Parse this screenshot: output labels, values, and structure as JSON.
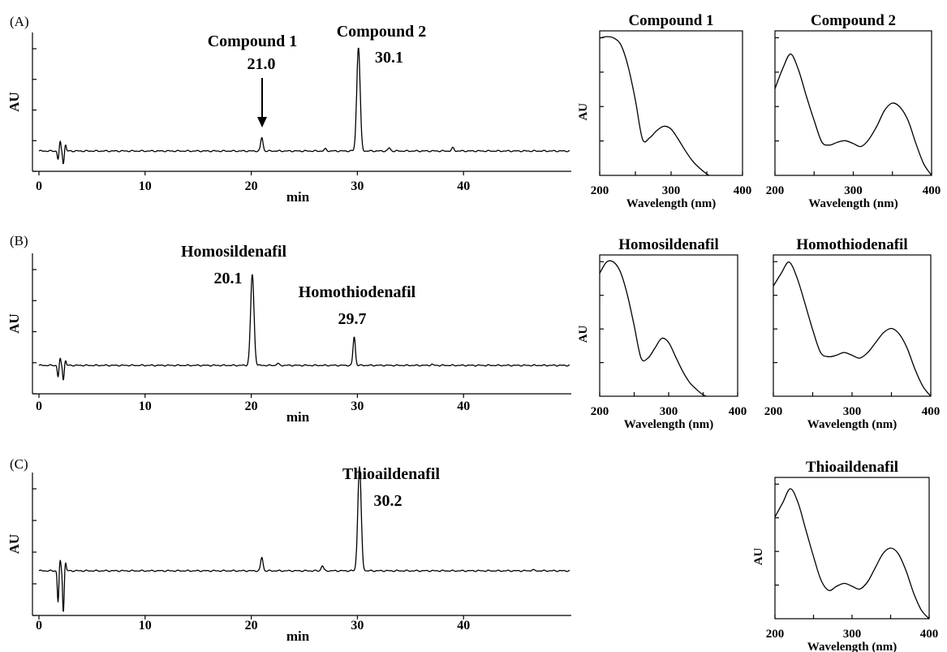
{
  "chromatograms": [
    {
      "panel_label": "(A)",
      "xlabel": "min",
      "ylabel": "AU",
      "xticks": [
        "0",
        "10",
        "20",
        "30",
        "40"
      ],
      "peaks": [
        {
          "name": "Compound 1",
          "rt": "21.0",
          "arrow": true
        },
        {
          "name": "Compound 2",
          "rt": "30.1",
          "arrow": false
        }
      ]
    },
    {
      "panel_label": "(B)",
      "xlabel": "min",
      "ylabel": "AU",
      "xticks": [
        "0",
        "10",
        "20",
        "30",
        "40"
      ],
      "peaks": [
        {
          "name": "Homosildenafil",
          "rt": "20.1",
          "arrow": false
        },
        {
          "name": "Homothiodenafil",
          "rt": "29.7",
          "arrow": false
        }
      ]
    },
    {
      "panel_label": "(C)",
      "xlabel": "min",
      "ylabel": "AU",
      "xticks": [
        "0",
        "10",
        "20",
        "30",
        "40"
      ],
      "peaks": [
        {
          "name": "Thioaildenafil",
          "rt": "30.2",
          "arrow": false
        }
      ]
    }
  ],
  "spectra": [
    {
      "title": "Compound 1",
      "xlabel": "Wavelength (nm)",
      "ylabel": "AU",
      "xticks": [
        "200",
        "300",
        "400"
      ]
    },
    {
      "title": "Compound 2",
      "xlabel": "Wavelength (nm)",
      "ylabel": "",
      "xticks": [
        "200",
        "300",
        "400"
      ]
    },
    {
      "title": "Homosildenafil",
      "xlabel": "Wavelength (nm)",
      "ylabel": "AU",
      "xticks": [
        "200",
        "300",
        "400"
      ]
    },
    {
      "title": "Homothiodenafil",
      "xlabel": "Wavelength (nm)",
      "ylabel": "",
      "xticks": [
        "200",
        "300",
        "400"
      ]
    },
    {
      "title": "Thioaildenafil",
      "xlabel": "Wavelength (nm)",
      "ylabel": "AU",
      "xticks": [
        "200",
        "300",
        "400"
      ]
    }
  ],
  "chart_data": [
    {
      "type": "line",
      "panel": "(A)",
      "xlabel": "min",
      "ylabel": "AU",
      "xlim": [
        0,
        50
      ],
      "ylim": [
        -0.25,
        1.05
      ],
      "baseline": 0,
      "x_ticks": [
        0,
        10,
        20,
        30,
        40
      ],
      "peaks": [
        {
          "x": 1.8,
          "y": -0.08
        },
        {
          "x": 2.0,
          "y": 0.09
        },
        {
          "x": 2.3,
          "y": -0.12
        },
        {
          "x": 2.5,
          "y": 0.06
        },
        {
          "x": 21.0,
          "y": 0.13
        },
        {
          "x": 27.0,
          "y": 0.02
        },
        {
          "x": 30.1,
          "y": 1.0
        },
        {
          "x": 33.0,
          "y": 0.03
        },
        {
          "x": 39.0,
          "y": 0.03
        }
      ],
      "annotations": [
        {
          "label": "Compound 1",
          "rt": 21.0
        },
        {
          "label": "Compound 2",
          "rt": 30.1
        }
      ]
    },
    {
      "type": "line",
      "panel": "(B)",
      "xlabel": "min",
      "ylabel": "AU",
      "xlim": [
        0,
        50
      ],
      "ylim": [
        -0.25,
        1.05
      ],
      "baseline": 0,
      "x_ticks": [
        0,
        10,
        20,
        30,
        40
      ],
      "peaks": [
        {
          "x": 1.8,
          "y": -0.12
        },
        {
          "x": 2.0,
          "y": 0.07
        },
        {
          "x": 2.3,
          "y": -0.15
        },
        {
          "x": 2.5,
          "y": 0.05
        },
        {
          "x": 20.1,
          "y": 0.95
        },
        {
          "x": 22.5,
          "y": 0.02
        },
        {
          "x": 29.7,
          "y": 0.3
        },
        {
          "x": 37.0,
          "y": 0.01
        }
      ],
      "annotations": [
        {
          "label": "Homosildenafil",
          "rt": 20.1
        },
        {
          "label": "Homothiodenafil",
          "rt": 29.7
        }
      ]
    },
    {
      "type": "line",
      "panel": "(C)",
      "xlabel": "min",
      "ylabel": "AU",
      "xlim": [
        0,
        50
      ],
      "ylim": [
        -0.25,
        1.05
      ],
      "baseline": 0,
      "x_ticks": [
        0,
        10,
        20,
        30,
        40
      ],
      "peaks": [
        {
          "x": 1.8,
          "y": -0.3
        },
        {
          "x": 2.0,
          "y": 0.1
        },
        {
          "x": 2.3,
          "y": -0.4
        },
        {
          "x": 2.5,
          "y": 0.08
        },
        {
          "x": 21.0,
          "y": 0.13
        },
        {
          "x": 26.7,
          "y": 0.05
        },
        {
          "x": 30.2,
          "y": 1.0
        },
        {
          "x": 46.5,
          "y": 0.01
        }
      ],
      "annotations": [
        {
          "label": "Thioaildenafil",
          "rt": 30.2
        }
      ]
    },
    {
      "type": "line",
      "title": "Compound 1",
      "xlabel": "Wavelength (nm)",
      "ylabel": "AU",
      "xlim": [
        200,
        400
      ],
      "ylim": [
        0,
        1
      ],
      "x": [
        200,
        210,
        220,
        230,
        240,
        250,
        260,
        270,
        280,
        290,
        300,
        310,
        320,
        330,
        340,
        350,
        360
      ],
      "y": [
        0.95,
        0.96,
        0.95,
        0.9,
        0.75,
        0.52,
        0.25,
        0.26,
        0.31,
        0.34,
        0.32,
        0.25,
        0.17,
        0.1,
        0.05,
        0.01,
        -0.02
      ]
    },
    {
      "type": "line",
      "title": "Compound 2",
      "xlabel": "Wavelength (nm)",
      "ylabel": "",
      "xlim": [
        200,
        400
      ],
      "ylim": [
        0,
        1
      ],
      "x": [
        200,
        210,
        220,
        230,
        240,
        250,
        260,
        270,
        280,
        290,
        300,
        310,
        320,
        330,
        340,
        350,
        360,
        370,
        380,
        390,
        400
      ],
      "y": [
        0.6,
        0.74,
        0.84,
        0.73,
        0.55,
        0.38,
        0.23,
        0.21,
        0.23,
        0.24,
        0.22,
        0.2,
        0.25,
        0.34,
        0.45,
        0.5,
        0.47,
        0.38,
        0.22,
        0.08,
        0.0
      ]
    },
    {
      "type": "line",
      "title": "Homosildenafil",
      "xlabel": "Wavelength (nm)",
      "ylabel": "AU",
      "xlim": [
        200,
        400
      ],
      "ylim": [
        0,
        1
      ],
      "x": [
        200,
        210,
        220,
        230,
        240,
        250,
        260,
        270,
        280,
        290,
        300,
        310,
        320,
        330,
        340,
        350,
        360
      ],
      "y": [
        0.87,
        0.95,
        0.95,
        0.88,
        0.72,
        0.5,
        0.27,
        0.27,
        0.34,
        0.41,
        0.38,
        0.28,
        0.18,
        0.1,
        0.05,
        0.01,
        -0.01
      ]
    },
    {
      "type": "line",
      "title": "Homothiodenafil",
      "xlabel": "Wavelength (nm)",
      "ylabel": "",
      "xlim": [
        200,
        400
      ],
      "ylim": [
        0,
        1
      ],
      "x": [
        200,
        210,
        220,
        230,
        240,
        250,
        260,
        270,
        280,
        290,
        300,
        310,
        320,
        330,
        340,
        350,
        360,
        370,
        380,
        390,
        400
      ],
      "y": [
        0.78,
        0.87,
        0.95,
        0.84,
        0.66,
        0.47,
        0.31,
        0.28,
        0.29,
        0.31,
        0.29,
        0.27,
        0.31,
        0.38,
        0.45,
        0.48,
        0.44,
        0.34,
        0.19,
        0.07,
        0.0
      ]
    },
    {
      "type": "line",
      "title": "Thioaildenafil",
      "xlabel": "Wavelength (nm)",
      "ylabel": "AU",
      "xlim": [
        200,
        400
      ],
      "ylim": [
        0,
        1
      ],
      "x": [
        200,
        210,
        220,
        230,
        240,
        250,
        260,
        270,
        280,
        290,
        300,
        310,
        320,
        330,
        340,
        350,
        360,
        370,
        380,
        390,
        400
      ],
      "y": [
        0.72,
        0.82,
        0.92,
        0.82,
        0.63,
        0.44,
        0.27,
        0.2,
        0.23,
        0.25,
        0.23,
        0.21,
        0.26,
        0.36,
        0.46,
        0.5,
        0.46,
        0.34,
        0.18,
        0.06,
        0.0
      ]
    }
  ]
}
